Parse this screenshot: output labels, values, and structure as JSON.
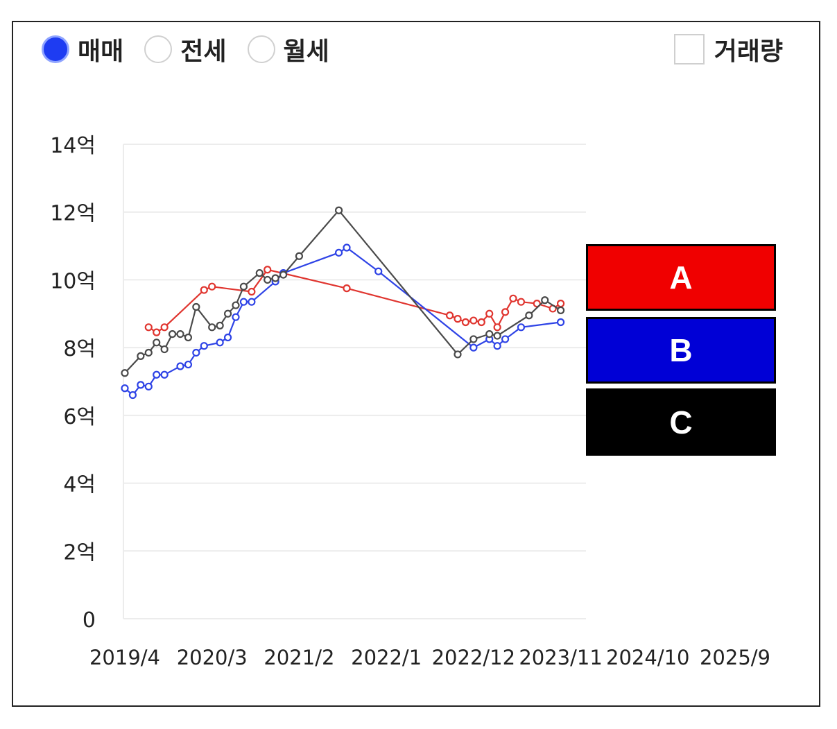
{
  "deal_types": [
    {
      "label": "매매",
      "selected": true
    },
    {
      "label": "전세",
      "selected": false
    },
    {
      "label": "월세",
      "selected": false
    }
  ],
  "volume_toggle": {
    "label": "거래량",
    "checked": false
  },
  "legend": [
    {
      "label": "A",
      "color": "#f00000"
    },
    {
      "label": "B",
      "color": "#0000d6"
    },
    {
      "label": "C",
      "color": "#000000"
    }
  ],
  "chart_data": {
    "type": "line",
    "x_tick_labels": [
      "2019/4",
      "2020/3",
      "2021/2",
      "2022/1",
      "2022/12",
      "2023/11",
      "2024/10",
      "2025/9"
    ],
    "x_tick_positions": [
      "2019-04",
      "2020-03",
      "2021-02",
      "2022-01",
      "2022-12",
      "2023-11",
      "2024-10",
      "2025-09"
    ],
    "y_tick_labels": [
      "0",
      "2억",
      "4억",
      "6억",
      "8억",
      "10억",
      "12억",
      "14억"
    ],
    "y_unit": "억",
    "ylim": [
      0,
      14
    ],
    "xlim": [
      "2019-04",
      "2025-09"
    ],
    "plot_area_end": "2023-11",
    "grid": true,
    "series": [
      {
        "name": "A",
        "color": "#e0352f",
        "points": [
          [
            "2019-07",
            8.6
          ],
          [
            "2019-08",
            8.45
          ],
          [
            "2019-09",
            8.6
          ],
          [
            "2020-02",
            9.7
          ],
          [
            "2020-03",
            9.8
          ],
          [
            "2020-08",
            9.65
          ],
          [
            "2020-10",
            10.3
          ],
          [
            "2021-08",
            9.75
          ],
          [
            "2022-09",
            8.95
          ],
          [
            "2022-10",
            8.85
          ],
          [
            "2022-11",
            8.75
          ],
          [
            "2022-12",
            8.8
          ],
          [
            "2023-01",
            8.75
          ],
          [
            "2023-02",
            9.0
          ],
          [
            "2023-03",
            8.6
          ],
          [
            "2023-04",
            9.05
          ],
          [
            "2023-05",
            9.45
          ],
          [
            "2023-06",
            9.35
          ],
          [
            "2023-08",
            9.3
          ],
          [
            "2023-10",
            9.15
          ],
          [
            "2023-11",
            9.3
          ]
        ]
      },
      {
        "name": "B",
        "color": "#2e43e6",
        "points": [
          [
            "2019-04",
            6.8
          ],
          [
            "2019-05",
            6.6
          ],
          [
            "2019-06",
            6.9
          ],
          [
            "2019-07",
            6.85
          ],
          [
            "2019-08",
            7.2
          ],
          [
            "2019-09",
            7.2
          ],
          [
            "2019-11",
            7.45
          ],
          [
            "2019-12",
            7.5
          ],
          [
            "2020-01",
            7.85
          ],
          [
            "2020-02",
            8.05
          ],
          [
            "2020-04",
            8.15
          ],
          [
            "2020-05",
            8.3
          ],
          [
            "2020-06",
            8.9
          ],
          [
            "2020-07",
            9.35
          ],
          [
            "2020-08",
            9.35
          ],
          [
            "2020-11",
            9.95
          ],
          [
            "2020-12",
            10.2
          ],
          [
            "2021-07",
            10.8
          ],
          [
            "2021-08",
            10.95
          ],
          [
            "2021-12",
            10.25
          ],
          [
            "2022-12",
            8.0
          ],
          [
            "2023-02",
            8.25
          ],
          [
            "2023-03",
            8.05
          ],
          [
            "2023-04",
            8.25
          ],
          [
            "2023-06",
            8.6
          ],
          [
            "2023-11",
            8.75
          ]
        ]
      },
      {
        "name": "C",
        "color": "#4a4a4a",
        "points": [
          [
            "2019-04",
            7.25
          ],
          [
            "2019-06",
            7.75
          ],
          [
            "2019-07",
            7.85
          ],
          [
            "2019-08",
            8.15
          ],
          [
            "2019-09",
            7.95
          ],
          [
            "2019-10",
            8.4
          ],
          [
            "2019-11",
            8.4
          ],
          [
            "2019-12",
            8.3
          ],
          [
            "2020-01",
            9.2
          ],
          [
            "2020-03",
            8.6
          ],
          [
            "2020-04",
            8.65
          ],
          [
            "2020-05",
            9.0
          ],
          [
            "2020-06",
            9.25
          ],
          [
            "2020-07",
            9.8
          ],
          [
            "2020-09",
            10.2
          ],
          [
            "2020-10",
            10.0
          ],
          [
            "2020-11",
            10.05
          ],
          [
            "2020-12",
            10.15
          ],
          [
            "2021-02",
            10.7
          ],
          [
            "2021-07",
            12.05
          ],
          [
            "2022-10",
            7.8
          ],
          [
            "2022-12",
            8.25
          ],
          [
            "2023-02",
            8.4
          ],
          [
            "2023-03",
            8.35
          ],
          [
            "2023-07",
            8.95
          ],
          [
            "2023-09",
            9.4
          ],
          [
            "2023-11",
            9.1
          ]
        ]
      }
    ]
  }
}
